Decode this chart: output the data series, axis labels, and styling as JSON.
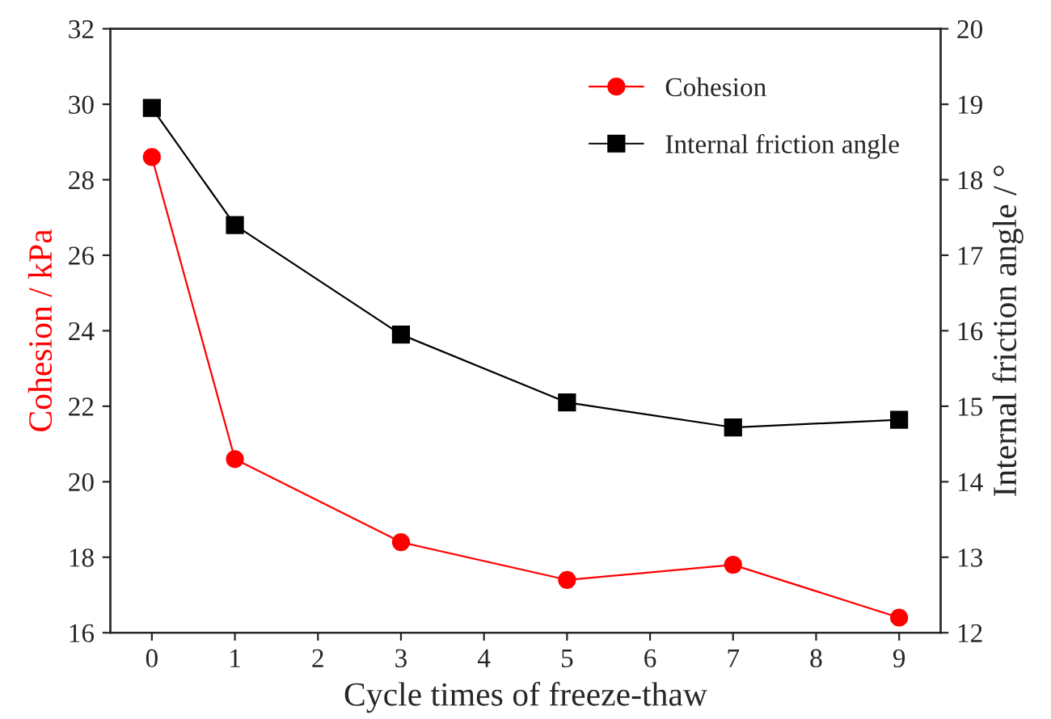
{
  "chart_data": {
    "type": "line",
    "xlabel": "Cycle times of freeze-thaw",
    "ylabel": "Cohesion / kPa",
    "y2label": "Internal friction angle / °",
    "x": [
      0,
      1,
      3,
      5,
      7,
      9
    ],
    "series": [
      {
        "name": "Cohesion",
        "color": "#ff0000",
        "marker": "circle",
        "values": [
          28.6,
          20.6,
          18.4,
          17.4,
          17.8,
          16.4
        ]
      },
      {
        "name": "Internal friction angle",
        "color": "#000000",
        "marker": "square",
        "axis": "y2",
        "values": [
          18.95,
          17.4,
          15.95,
          15.05,
          14.72,
          14.82
        ]
      }
    ],
    "xlim": [
      -0.5,
      9.5
    ],
    "xticks": [
      0,
      1,
      2,
      3,
      4,
      5,
      6,
      7,
      8,
      9
    ],
    "ylim": [
      16,
      32
    ],
    "yticks": [
      16,
      18,
      20,
      22,
      24,
      26,
      28,
      30,
      32
    ],
    "y2lim": [
      12,
      20
    ],
    "y2ticks": [
      12,
      13,
      14,
      15,
      16,
      17,
      18,
      19,
      20
    ],
    "legend": "top right",
    "grid": false,
    "line_style": "solid"
  }
}
